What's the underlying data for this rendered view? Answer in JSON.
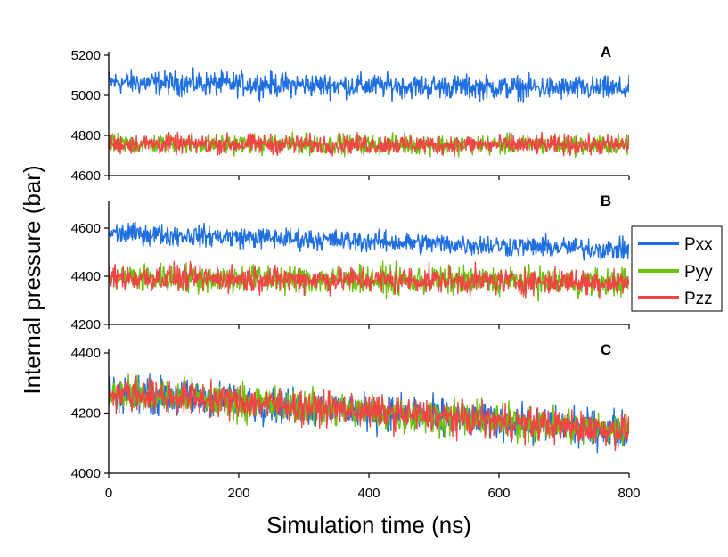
{
  "chart_data": {
    "type": "line",
    "xlabel": "Simulation time (ns)",
    "ylabel": "Internal pressure (bar)",
    "xlim": [
      0,
      800
    ],
    "xticks": [
      0,
      200,
      400,
      600,
      800
    ],
    "legend": {
      "placement": "right",
      "entries": [
        {
          "name": "Pxx",
          "color": "#1f6fe0"
        },
        {
          "name": "Pyy",
          "color": "#6cc10c"
        },
        {
          "name": "Pzz",
          "color": "#f24444"
        }
      ]
    },
    "panels": [
      {
        "label": "A",
        "ylim": [
          4600,
          5200
        ],
        "yticks": [
          4600,
          4800,
          5000,
          5200
        ],
        "series": [
          {
            "name": "Pxx",
            "mean_start": 5065,
            "mean_end": 5030,
            "noise": 55
          },
          {
            "name": "Pyy",
            "mean_start": 4758,
            "mean_end": 4752,
            "noise": 45
          },
          {
            "name": "Pzz",
            "mean_start": 4758,
            "mean_end": 4752,
            "noise": 45
          }
        ]
      },
      {
        "label": "B",
        "ylim": [
          4200,
          4700
        ],
        "yticks": [
          4200,
          4400,
          4600
        ],
        "series": [
          {
            "name": "Pxx",
            "mean_start": 4580,
            "mean_end": 4510,
            "noise": 40
          },
          {
            "name": "Pyy",
            "mean_start": 4395,
            "mean_end": 4375,
            "noise": 55
          },
          {
            "name": "Pzz",
            "mean_start": 4395,
            "mean_end": 4375,
            "noise": 50
          }
        ]
      },
      {
        "label": "C",
        "ylim": [
          4000,
          4400
        ],
        "yticks": [
          4000,
          4200,
          4400
        ],
        "series": [
          {
            "name": "Pxx",
            "mean_start": 4270,
            "mean_end": 4140,
            "noise": 55
          },
          {
            "name": "Pyy",
            "mean_start": 4270,
            "mean_end": 4140,
            "noise": 55
          },
          {
            "name": "Pzz",
            "mean_start": 4270,
            "mean_end": 4140,
            "noise": 50
          }
        ]
      }
    ]
  }
}
